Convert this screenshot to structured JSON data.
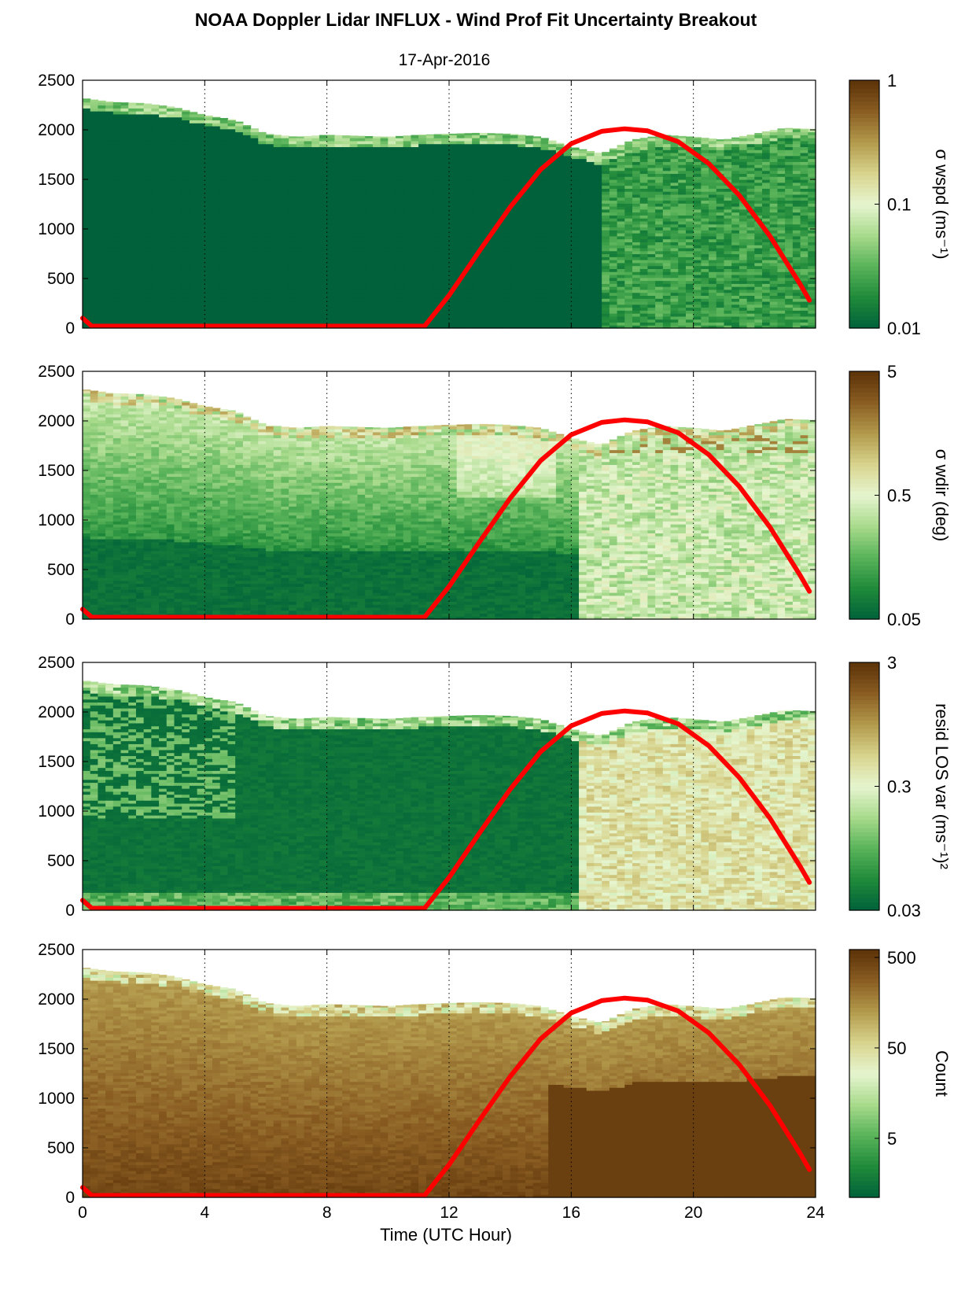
{
  "figure": {
    "title": "NOAA Doppler Lidar INFLUX - Wind Prof Fit Uncertainty Breakout",
    "date": "17-Apr-2016",
    "xlabel": "Time (UTC Hour)"
  },
  "chart_data": [
    {
      "type": "heatmap",
      "ylabel": "",
      "colorbar_label": "σ wspd (ms⁻¹)",
      "colorbar_scale": "log",
      "colorbar_ticks": [
        "0.01",
        "0.1",
        "1"
      ],
      "xlim": [
        0,
        24
      ],
      "ylim": [
        0,
        2500
      ],
      "xticks": [
        "0",
        "4",
        "8",
        "12",
        "16",
        "20",
        "24"
      ],
      "yticks": [
        "0",
        "500",
        "1000",
        "1500",
        "2000",
        "2500"
      ],
      "grid": "dotted vertical at 4-hour intervals",
      "field_description": "uniform minimum (0.01) before ~17 UTC; mottled 0.02-0.06 after 17 UTC",
      "data_top_height": [
        [
          0,
          2320
        ],
        [
          1,
          2280
        ],
        [
          2,
          2270
        ],
        [
          3,
          2230
        ],
        [
          4,
          2150
        ],
        [
          5,
          2100
        ],
        [
          6,
          1960
        ],
        [
          7,
          1930
        ],
        [
          8,
          1950
        ],
        [
          9,
          1940
        ],
        [
          10,
          1930
        ],
        [
          11,
          1950
        ],
        [
          12,
          1960
        ],
        [
          13,
          1970
        ],
        [
          14,
          1960
        ],
        [
          15,
          1930
        ],
        [
          16,
          1830
        ],
        [
          17,
          1760
        ],
        [
          18,
          1900
        ],
        [
          19,
          1950
        ],
        [
          20,
          1930
        ],
        [
          21,
          1900
        ],
        [
          22,
          1960
        ],
        [
          23,
          2020
        ],
        [
          23.8,
          2010
        ]
      ],
      "solar_curve": {
        "color": "#ff0000",
        "points": [
          [
            0,
            100
          ],
          [
            0.3,
            20
          ],
          [
            11.2,
            20
          ],
          [
            12,
            330
          ],
          [
            13,
            780
          ],
          [
            14,
            1220
          ],
          [
            15,
            1600
          ],
          [
            16,
            1860
          ],
          [
            17,
            1985
          ],
          [
            17.75,
            2010
          ],
          [
            18.5,
            1990
          ],
          [
            19.5,
            1880
          ],
          [
            20.5,
            1660
          ],
          [
            21.5,
            1340
          ],
          [
            22.5,
            930
          ],
          [
            23.5,
            440
          ],
          [
            23.8,
            280
          ]
        ]
      }
    },
    {
      "type": "heatmap",
      "ylabel": "",
      "colorbar_label": "σ wdir (deg)",
      "colorbar_scale": "log",
      "colorbar_ticks": [
        "0.05",
        "0.5",
        "5"
      ],
      "xlim": [
        0,
        24
      ],
      "ylim": [
        0,
        2500
      ],
      "xticks": [
        "0",
        "4",
        "8",
        "12",
        "16",
        "20",
        "24"
      ],
      "yticks": [
        "0",
        "500",
        "1000",
        "1500",
        "2000",
        "2500"
      ],
      "grid": "dotted vertical at 4-hour intervals",
      "field_description": "low near surface before 16 UTC, increasing with height; elevated 0.3-2 after 16 UTC with brown patches near 1800 m",
      "data_top_height": [
        [
          0,
          2320
        ],
        [
          1,
          2280
        ],
        [
          2,
          2270
        ],
        [
          3,
          2230
        ],
        [
          4,
          2150
        ],
        [
          5,
          2100
        ],
        [
          6,
          1960
        ],
        [
          7,
          1930
        ],
        [
          8,
          1950
        ],
        [
          9,
          1940
        ],
        [
          10,
          1930
        ],
        [
          11,
          1950
        ],
        [
          12,
          1960
        ],
        [
          13,
          1970
        ],
        [
          14,
          1960
        ],
        [
          15,
          1930
        ],
        [
          16,
          1830
        ],
        [
          17,
          1760
        ],
        [
          18,
          1900
        ],
        [
          19,
          1950
        ],
        [
          20,
          1930
        ],
        [
          21,
          1900
        ],
        [
          22,
          1960
        ],
        [
          23,
          2020
        ],
        [
          23.8,
          2010
        ]
      ],
      "solar_curve": {
        "color": "#ff0000",
        "points": [
          [
            0,
            100
          ],
          [
            0.3,
            20
          ],
          [
            11.2,
            20
          ],
          [
            12,
            330
          ],
          [
            13,
            780
          ],
          [
            14,
            1220
          ],
          [
            15,
            1600
          ],
          [
            16,
            1860
          ],
          [
            17,
            1985
          ],
          [
            17.75,
            2010
          ],
          [
            18.5,
            1990
          ],
          [
            19.5,
            1880
          ],
          [
            20.5,
            1660
          ],
          [
            21.5,
            1340
          ],
          [
            22.5,
            930
          ],
          [
            23.5,
            440
          ],
          [
            23.8,
            280
          ]
        ]
      }
    },
    {
      "type": "heatmap",
      "ylabel": "",
      "colorbar_label": "resid LOS var (ms⁻¹)²",
      "colorbar_scale": "log",
      "colorbar_ticks": [
        "0.03",
        "0.3",
        "3"
      ],
      "xlim": [
        0,
        24
      ],
      "ylim": [
        0,
        2500
      ],
      "xticks": [
        "0",
        "4",
        "8",
        "12",
        "16",
        "20",
        "24"
      ],
      "yticks": [
        "0",
        "500",
        "1000",
        "1500",
        "2000",
        "2500"
      ],
      "grid": "dotted vertical at 4-hour intervals",
      "field_description": "minimum before 16 UTC with lighter streaks; tan/brown 0.3-2 after 16 UTC",
      "data_top_height": [
        [
          0,
          2320
        ],
        [
          1,
          2280
        ],
        [
          2,
          2270
        ],
        [
          3,
          2230
        ],
        [
          4,
          2150
        ],
        [
          5,
          2100
        ],
        [
          6,
          1960
        ],
        [
          7,
          1930
        ],
        [
          8,
          1950
        ],
        [
          9,
          1940
        ],
        [
          10,
          1930
        ],
        [
          11,
          1950
        ],
        [
          12,
          1960
        ],
        [
          13,
          1970
        ],
        [
          14,
          1960
        ],
        [
          15,
          1930
        ],
        [
          16,
          1830
        ],
        [
          17,
          1760
        ],
        [
          18,
          1900
        ],
        [
          19,
          1950
        ],
        [
          20,
          1930
        ],
        [
          21,
          1900
        ],
        [
          22,
          1960
        ],
        [
          23,
          2020
        ],
        [
          23.8,
          2010
        ]
      ],
      "solar_curve": {
        "color": "#ff0000",
        "points": [
          [
            0,
            100
          ],
          [
            0.3,
            20
          ],
          [
            11.2,
            20
          ],
          [
            12,
            330
          ],
          [
            13,
            780
          ],
          [
            14,
            1220
          ],
          [
            15,
            1600
          ],
          [
            16,
            1860
          ],
          [
            17,
            1985
          ],
          [
            17.75,
            2010
          ],
          [
            18.5,
            1990
          ],
          [
            19.5,
            1880
          ],
          [
            20.5,
            1660
          ],
          [
            21.5,
            1340
          ],
          [
            22.5,
            930
          ],
          [
            23.5,
            440
          ],
          [
            23.8,
            280
          ]
        ]
      }
    },
    {
      "type": "heatmap",
      "ylabel": "",
      "colorbar_label": "Count",
      "colorbar_scale": "log",
      "colorbar_ticks": [
        "5",
        "50",
        "500"
      ],
      "xlim": [
        0,
        24
      ],
      "ylim": [
        0,
        2500
      ],
      "xticks": [
        "0",
        "4",
        "8",
        "12",
        "16",
        "20",
        "24"
      ],
      "yticks": [
        "0",
        "500",
        "1000",
        "1500",
        "2000",
        "2500"
      ],
      "grid": "dotted vertical at 4-hour intervals",
      "field_description": "high counts (~300-500) throughout, decreasing toward cloud/aerosol top",
      "data_top_height": [
        [
          0,
          2320
        ],
        [
          1,
          2280
        ],
        [
          2,
          2270
        ],
        [
          3,
          2230
        ],
        [
          4,
          2150
        ],
        [
          5,
          2100
        ],
        [
          6,
          1960
        ],
        [
          7,
          1930
        ],
        [
          8,
          1950
        ],
        [
          9,
          1940
        ],
        [
          10,
          1930
        ],
        [
          11,
          1950
        ],
        [
          12,
          1960
        ],
        [
          13,
          1970
        ],
        [
          14,
          1960
        ],
        [
          15,
          1930
        ],
        [
          16,
          1830
        ],
        [
          17,
          1760
        ],
        [
          18,
          1900
        ],
        [
          19,
          1950
        ],
        [
          20,
          1930
        ],
        [
          21,
          1900
        ],
        [
          22,
          1960
        ],
        [
          23,
          2020
        ],
        [
          23.8,
          2010
        ]
      ],
      "solar_curve": {
        "color": "#ff0000",
        "points": [
          [
            0,
            100
          ],
          [
            0.3,
            20
          ],
          [
            11.2,
            20
          ],
          [
            12,
            330
          ],
          [
            13,
            780
          ],
          [
            14,
            1220
          ],
          [
            15,
            1600
          ],
          [
            16,
            1860
          ],
          [
            17,
            1985
          ],
          [
            17.75,
            2010
          ],
          [
            18.5,
            1990
          ],
          [
            19.5,
            1880
          ],
          [
            20.5,
            1660
          ],
          [
            21.5,
            1340
          ],
          [
            22.5,
            930
          ],
          [
            23.5,
            440
          ],
          [
            23.8,
            280
          ]
        ]
      }
    }
  ],
  "colormap": [
    "#00613a",
    "#1f8a3a",
    "#59b359",
    "#a8da8c",
    "#e6f5cf",
    "#d8d48e",
    "#b39a4c",
    "#8a5d22",
    "#5c3208"
  ]
}
